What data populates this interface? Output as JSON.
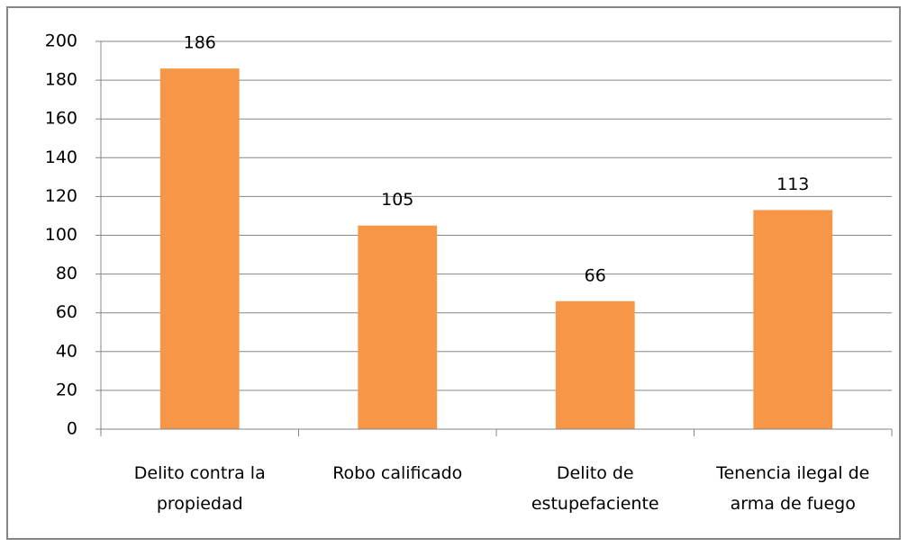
{
  "chart_data": {
    "type": "bar",
    "categories": [
      "Delito contra la propiedad",
      "Robo calificado",
      "Delito de estupefaciente",
      "Tenencia ilegal de arma de fuego"
    ],
    "values": [
      186,
      105,
      66,
      113
    ],
    "color": "#f79646",
    "ylim": [
      0,
      200
    ],
    "yticks": [
      0,
      20,
      40,
      60,
      80,
      100,
      120,
      140,
      160,
      180,
      200
    ],
    "grid": true
  }
}
